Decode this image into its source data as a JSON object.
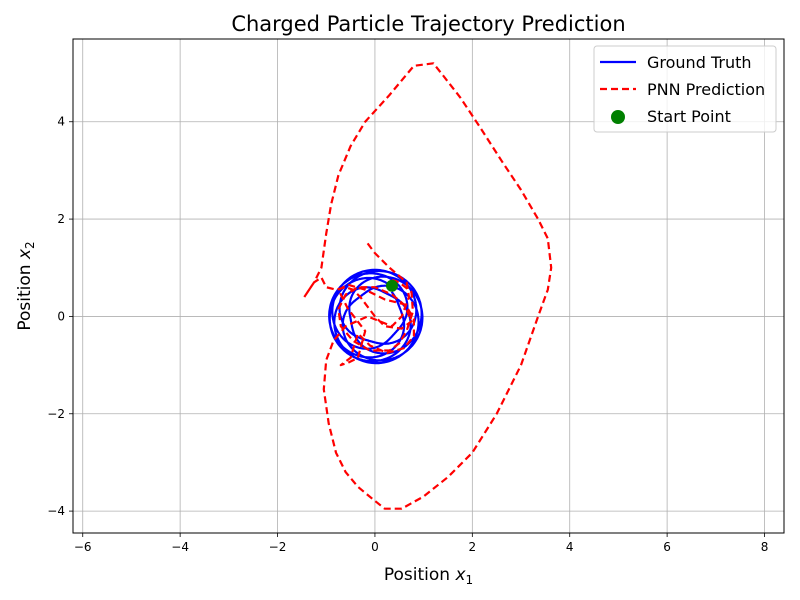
{
  "chart_data": {
    "type": "line",
    "title": "Charged Particle Trajectory Prediction",
    "xlabel": {
      "text": "Position ",
      "var": "x",
      "sub": "1"
    },
    "ylabel": {
      "text": "Position ",
      "var": "x",
      "sub": "2"
    },
    "xlim": [
      -6.2,
      8.4
    ],
    "ylim": [
      -4.45,
      5.7
    ],
    "xticks": [
      -6,
      -4,
      -2,
      0,
      2,
      4,
      6,
      8
    ],
    "yticks": [
      -4,
      -2,
      0,
      2,
      4
    ],
    "xtick_labels": [
      "−6",
      "−4",
      "−2",
      "0",
      "2",
      "4",
      "6",
      "8"
    ],
    "ytick_labels": [
      "−4",
      "−2",
      "0",
      "2",
      "4"
    ],
    "grid": true,
    "legend_position": "top-right",
    "series": [
      {
        "name": "Ground Truth",
        "kind": "line",
        "style": "solid",
        "color": "#0000ff",
        "model": {
          "type": "epitrochoid",
          "center": [
            0.02,
            0.0
          ],
          "R": 0.34,
          "r": 0.4,
          "cycles": 14,
          "start_phase": 1.26
        }
      },
      {
        "name": "PNN Prediction",
        "kind": "line",
        "style": "dashed",
        "color": "#ff0000",
        "x": [
          0.35,
          0.5,
          0.75,
          0.78,
          0.65,
          0.5,
          0.3,
          -0.1,
          -0.45,
          -0.7,
          -0.75,
          -0.6,
          -0.35,
          0.0,
          0.35,
          0.65,
          0.8,
          0.8,
          0.6,
          0.25,
          -0.1,
          -0.35,
          -0.5,
          -0.7,
          -0.55,
          -0.35,
          -0.2,
          -0.55,
          -0.75,
          -0.55,
          -0.2,
          0.2,
          0.6,
          0.75,
          0.55,
          0.2,
          0.0,
          -0.15,
          -0.3,
          -0.45,
          -0.6,
          -0.8,
          -1.0,
          -1.1,
          -1.25,
          -1.45
        ],
        "y": [
          0.75,
          0.7,
          0.5,
          0.1,
          -0.3,
          -0.55,
          -0.7,
          -0.7,
          -0.5,
          -0.2,
          0.15,
          0.45,
          0.6,
          0.6,
          0.45,
          0.2,
          -0.05,
          -0.4,
          -0.65,
          -0.75,
          -0.6,
          -0.35,
          -0.85,
          -1.0,
          -0.95,
          -0.85,
          -0.3,
          0.15,
          0.55,
          0.65,
          0.55,
          0.35,
          0.25,
          -0.1,
          -0.25,
          -0.2,
          0.0,
          0.2,
          0.4,
          0.55,
          0.6,
          0.55,
          0.6,
          0.8,
          0.7,
          0.4
        ],
        "loop_x": [
          -0.15,
          0.0,
          0.3,
          0.65,
          0.7,
          0.55,
          0.35,
          -0.15,
          -0.6,
          -0.85,
          -1.0,
          -1.05,
          -0.95,
          -0.8,
          -0.6,
          -0.35,
          -0.05,
          0.2,
          0.55,
          1.0,
          1.5,
          2.0,
          2.5,
          3.0,
          3.35,
          3.55,
          3.62,
          3.55,
          3.35,
          3.0,
          2.6,
          2.15,
          1.75,
          1.4,
          1.2,
          0.8,
          0.3,
          -0.2,
          -0.5,
          -0.75,
          -0.9,
          -1.0,
          -1.1,
          -1.25,
          -1.45
        ],
        "loop_y": [
          1.5,
          1.3,
          1.0,
          0.7,
          0.4,
          0.0,
          -0.2,
          0.0,
          -0.2,
          -0.5,
          -0.9,
          -1.5,
          -2.2,
          -2.8,
          -3.2,
          -3.5,
          -3.75,
          -3.95,
          -3.95,
          -3.7,
          -3.3,
          -2.8,
          -2.0,
          -1.0,
          0.0,
          0.55,
          1.0,
          1.6,
          2.0,
          2.6,
          3.2,
          3.9,
          4.5,
          4.95,
          5.2,
          5.15,
          4.55,
          4.0,
          3.5,
          2.9,
          2.3,
          1.7,
          1.0,
          0.7,
          0.4
        ]
      },
      {
        "name": "Start Point",
        "kind": "scatter",
        "color": "#008000",
        "x": [
          0.35
        ],
        "y": [
          0.63
        ]
      }
    ]
  }
}
